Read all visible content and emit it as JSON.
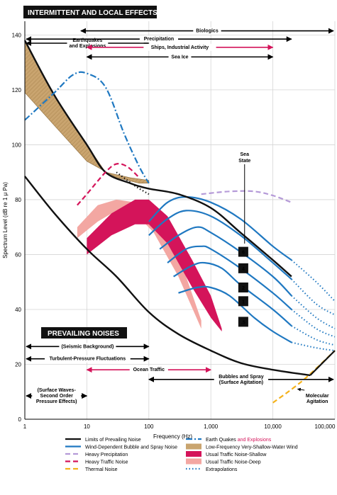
{
  "chart_data": {
    "type": "line",
    "header": "INTERMITTENT AND LOCAL EFFECTS",
    "prevailing_header": "PREVAILING NOISES",
    "xlabel": "Frequency (Hz)",
    "ylabel": "Spectrum Level (dB re 1 μ Pa)",
    "x_scale": "log",
    "xlim": [
      1,
      100000
    ],
    "ylim": [
      0,
      145
    ],
    "x_ticks": [
      {
        "value": 1,
        "label": "1"
      },
      {
        "value": 10,
        "label": "10"
      },
      {
        "value": 100,
        "label": "100"
      },
      {
        "value": 1000,
        "label": "1,000"
      },
      {
        "value": 10000,
        "label": "10,000"
      },
      {
        "value": 100000,
        "label": "100,000"
      }
    ],
    "y_ticks": [
      0,
      20,
      40,
      60,
      80,
      100,
      120,
      140
    ],
    "sea_state_title": [
      "Sea",
      "State"
    ],
    "sea_states": [
      {
        "label": "6",
        "anchor": [
          3000,
          61
        ]
      },
      {
        "label": "4",
        "anchor": [
          3000,
          55
        ]
      },
      {
        "label": "2",
        "anchor": [
          3000,
          48
        ]
      },
      {
        "label": "1",
        "anchor": [
          3000,
          43
        ]
      },
      {
        "label": ".5",
        "anchor": [
          3000,
          35.5
        ]
      }
    ],
    "arrows": [
      {
        "text": [
          "Earthquakes",
          "and Explosions"
        ],
        "accent": [
          false,
          true
        ],
        "x1": 1,
        "x2": 100,
        "y": 137,
        "color": "#000000"
      },
      {
        "text": [
          "Biologics"
        ],
        "accent": [
          false
        ],
        "x1": 8,
        "x2": 100000,
        "y": 141.5,
        "color": "#000000"
      },
      {
        "text": [
          "Precipitation"
        ],
        "accent": [
          false
        ],
        "x1": 1,
        "x2": 20000,
        "y": 138.5,
        "color": "#000000"
      },
      {
        "text": [
          "Ships, Industrial Activity"
        ],
        "accent": [
          true
        ],
        "x1": 10,
        "x2": 10000,
        "y": 135.5,
        "color": "#d4145a"
      },
      {
        "text": [
          "Sea Ice"
        ],
        "accent": [
          false
        ],
        "x1": 10,
        "x2": 10000,
        "y": 132,
        "color": "#000000"
      },
      {
        "text": [
          "(Seismic Background)"
        ],
        "accent": [
          false
        ],
        "x1": 1,
        "x2": 100,
        "y": 26.5,
        "color": "#000000"
      },
      {
        "text": [
          "Turbulent-Pressure Fluctuations"
        ],
        "accent": [
          false
        ],
        "x1": 1,
        "x2": 100,
        "y": 22,
        "color": "#000000"
      },
      {
        "text": [
          "Ocean Traffic"
        ],
        "accent": [
          true
        ],
        "x1": 10,
        "x2": 1000,
        "y": 18,
        "color": "#d4145a"
      },
      {
        "text": [
          "Bubbles and Spray",
          "(Surface Agitation)"
        ],
        "accent": [
          false,
          false
        ],
        "x1": 100,
        "x2": 100000,
        "y": 14.5,
        "color": "#000000"
      },
      {
        "text": [
          "(Surface Waves-",
          "Second Order",
          "Pressure Effects)"
        ],
        "accent": [
          false,
          false,
          false
        ],
        "x1": 1,
        "x2": 10,
        "y": 8.5,
        "color": "#000000"
      }
    ],
    "molecular_label": [
      "Molecular",
      "Agitation"
    ],
    "colors": {
      "black": "#111111",
      "blue": "#1f78c1",
      "magenta": "#d4145a",
      "lavender": "#b59ad8",
      "orange": "#f5b21a",
      "tan": "#c9a46f",
      "pink": "#f3a7a2",
      "crimson": "#d4145a"
    },
    "series": [
      {
        "name": "Limits of Prevailing Noise",
        "key": "limit_upper",
        "color": "#111111",
        "style": "solid",
        "points": [
          [
            1,
            138
          ],
          [
            3,
            118
          ],
          [
            10,
            100
          ],
          [
            20,
            90
          ],
          [
            50,
            86
          ],
          [
            100,
            84
          ],
          [
            300,
            82
          ],
          [
            1000,
            77
          ],
          [
            3000,
            68
          ],
          [
            10000,
            58
          ],
          [
            20000,
            52
          ]
        ]
      },
      {
        "name": "Limits of Prevailing Noise",
        "key": "limit_lower",
        "color": "#111111",
        "style": "solid",
        "points": [
          [
            1,
            88.5
          ],
          [
            3,
            75
          ],
          [
            10,
            62
          ],
          [
            30,
            52
          ],
          [
            100,
            39
          ],
          [
            300,
            31
          ],
          [
            1000,
            25
          ],
          [
            3000,
            20.5
          ],
          [
            10000,
            18
          ],
          [
            40000,
            16
          ]
        ]
      },
      {
        "name": "Extrapolations",
        "key": "extrap_upper",
        "color": "#111111",
        "style": "dotted",
        "points": [
          [
            30,
            90
          ],
          [
            60,
            85
          ],
          [
            100,
            82
          ]
        ]
      },
      {
        "name": "Earth Quakes and Explosions",
        "key": "earthquake",
        "color": "#1f78c1",
        "style": "dashdot",
        "points": [
          [
            1,
            109
          ],
          [
            3,
            119
          ],
          [
            6,
            125.5
          ],
          [
            10,
            126
          ],
          [
            20,
            121
          ],
          [
            40,
            104
          ],
          [
            70,
            92
          ],
          [
            100,
            86
          ]
        ]
      },
      {
        "name": "Heavy Traffic Noise",
        "key": "heavy_traffic",
        "color": "#d4145a",
        "style": "dashed",
        "points": [
          [
            7,
            78
          ],
          [
            10,
            82
          ],
          [
            20,
            90
          ],
          [
            30,
            93
          ],
          [
            45,
            92
          ],
          [
            70,
            88
          ]
        ]
      },
      {
        "name": "Heavy Precipitation",
        "key": "heavy_precip",
        "color": "#b59ad8",
        "style": "dashed",
        "points": [
          [
            700,
            82
          ],
          [
            2000,
            83
          ],
          [
            5000,
            83
          ],
          [
            10000,
            81.5
          ],
          [
            20000,
            79
          ]
        ]
      },
      {
        "name": "Thermal Noise",
        "key": "thermal",
        "color": "#f5b21a",
        "style": "dashed",
        "points": [
          [
            10000,
            6
          ],
          [
            30000,
            14
          ],
          [
            100000,
            25
          ]
        ]
      },
      {
        "name": "Molecular Agitation",
        "key": "thermal_solid",
        "color": "#111111",
        "style": "solid",
        "points": [
          [
            40000,
            16
          ],
          [
            100000,
            25
          ]
        ]
      }
    ],
    "bands": [
      {
        "name": "Low-Frequency Very-Shallow-Water Wind",
        "key": "lf_wind",
        "color": "#c9a46f",
        "upper": [
          [
            1,
            138
          ],
          [
            3,
            118
          ],
          [
            10,
            100
          ],
          [
            20,
            90
          ],
          [
            50,
            88
          ],
          [
            100,
            87
          ]
        ],
        "lower": [
          [
            1,
            119
          ],
          [
            3,
            107
          ],
          [
            10,
            94
          ],
          [
            30,
            88
          ],
          [
            70,
            86
          ],
          [
            100,
            86
          ]
        ]
      },
      {
        "name": "Usual Traffic Noise-Deep",
        "key": "traffic_deep",
        "color": "#f3a7a2",
        "upper": [
          [
            7,
            70
          ],
          [
            15,
            78
          ],
          [
            30,
            80
          ],
          [
            60,
            79
          ],
          [
            120,
            74
          ],
          [
            300,
            60
          ],
          [
            700,
            36
          ]
        ],
        "lower": [
          [
            7,
            66
          ],
          [
            15,
            72
          ],
          [
            30,
            76
          ],
          [
            60,
            75
          ],
          [
            120,
            68
          ],
          [
            300,
            52
          ],
          [
            700,
            33
          ]
        ]
      },
      {
        "name": "Usual Traffic Noise-Shallow",
        "key": "traffic_shallow",
        "color": "#d4145a",
        "upper": [
          [
            10,
            66
          ],
          [
            25,
            75
          ],
          [
            60,
            80
          ],
          [
            100,
            80
          ],
          [
            200,
            74
          ],
          [
            500,
            58
          ],
          [
            1000,
            45
          ],
          [
            1500,
            33
          ]
        ],
        "lower": [
          [
            10,
            60
          ],
          [
            25,
            67
          ],
          [
            60,
            71
          ],
          [
            100,
            71
          ],
          [
            200,
            64
          ],
          [
            500,
            48
          ],
          [
            1000,
            37
          ],
          [
            1500,
            32
          ]
        ]
      }
    ],
    "wind_curves": [
      {
        "name": "Wind-Dependent Bubble and Spray Noise",
        "label": "6",
        "solid": [
          [
            100,
            72
          ],
          [
            200,
            79
          ],
          [
            400,
            81
          ],
          [
            1000,
            79
          ],
          [
            3000,
            73
          ],
          [
            10000,
            63
          ],
          [
            20000,
            58
          ]
        ],
        "dotted": [
          [
            20000,
            58
          ],
          [
            50000,
            50
          ],
          [
            100000,
            43
          ]
        ]
      },
      {
        "name": "Wind-Dependent Bubble and Spray Noise",
        "label": "5",
        "solid": [
          [
            100,
            67
          ],
          [
            200,
            73
          ],
          [
            400,
            76
          ],
          [
            1000,
            74
          ],
          [
            3000,
            67
          ],
          [
            10000,
            57
          ],
          [
            20000,
            51
          ]
        ],
        "dotted": [
          [
            20000,
            51
          ],
          [
            50000,
            42
          ],
          [
            100000,
            38
          ]
        ]
      },
      {
        "name": "Wind-Dependent Bubble and Spray Noise",
        "label": "4",
        "solid": [
          [
            150,
            62
          ],
          [
            300,
            67
          ],
          [
            600,
            70
          ],
          [
            1000,
            68
          ],
          [
            3000,
            61
          ],
          [
            10000,
            52
          ],
          [
            20000,
            45
          ]
        ],
        "dotted": [
          [
            20000,
            45
          ],
          [
            50000,
            37
          ],
          [
            100000,
            33
          ]
        ]
      },
      {
        "name": "Wind-Dependent Bubble and Spray Noise",
        "label": "3",
        "solid": [
          [
            200,
            57
          ],
          [
            400,
            62
          ],
          [
            700,
            63
          ],
          [
            1000,
            62
          ],
          [
            3000,
            55
          ],
          [
            10000,
            46
          ],
          [
            20000,
            40
          ]
        ],
        "dotted": [
          [
            20000,
            40
          ],
          [
            50000,
            33
          ],
          [
            100000,
            30
          ]
        ]
      },
      {
        "name": "Wind-Dependent Bubble and Spray Noise",
        "label": "2",
        "solid": [
          [
            250,
            52
          ],
          [
            500,
            56
          ],
          [
            800,
            57
          ],
          [
            1500,
            55
          ],
          [
            3000,
            49
          ],
          [
            10000,
            40
          ],
          [
            20000,
            34
          ]
        ],
        "dotted": [
          [
            20000,
            34
          ],
          [
            50000,
            29
          ],
          [
            100000,
            27
          ]
        ]
      },
      {
        "name": "Wind-Dependent Bubble and Spray Noise",
        "label": "1",
        "solid": [
          [
            300,
            46
          ],
          [
            600,
            48
          ],
          [
            1000,
            48
          ],
          [
            2000,
            45
          ],
          [
            5000,
            37
          ],
          [
            10000,
            32
          ],
          [
            20000,
            28
          ]
        ],
        "dotted": [
          [
            20000,
            28
          ],
          [
            50000,
            26
          ],
          [
            100000,
            25
          ]
        ]
      }
    ],
    "legend": {
      "placement": "bottom",
      "items": [
        {
          "label": "Limits of Prevailing Noise",
          "swatch": "line",
          "color": "#111111",
          "style": "solid",
          "accent": false
        },
        {
          "label": "Earth Quakes",
          "label2": "and Explosions",
          "swatch": "line",
          "color": "#1f78c1",
          "style": "dashdot",
          "accent": false
        },
        {
          "label": "Wind-Dependent Bubble and Spray Noise",
          "swatch": "line",
          "color": "#1f78c1",
          "style": "solid",
          "accent": false
        },
        {
          "label": "Low-Frequency Very-Shallow-Water Wind",
          "swatch": "box",
          "color": "#c9a46f",
          "style": "solid",
          "accent": false
        },
        {
          "label": "Heavy Precipitation",
          "swatch": "line",
          "color": "#b59ad8",
          "style": "dashed",
          "accent": false
        },
        {
          "label": "Usual Traffic Noise-Shallow",
          "swatch": "box",
          "color": "#d4145a",
          "style": "solid",
          "accent": false
        },
        {
          "label": "Heavy Traffic Noise",
          "swatch": "line",
          "color": "#d4145a",
          "style": "dashed",
          "accent": true
        },
        {
          "label": "Usual Traffic Noise-Deep",
          "swatch": "box",
          "color": "#f3a7a2",
          "style": "solid",
          "accent": false
        },
        {
          "label": "Thermal Noise",
          "swatch": "line",
          "color": "#f5b21a",
          "style": "dashed",
          "accent": false
        },
        {
          "label": "Extrapolations",
          "swatch": "line",
          "color": "#1f78c1",
          "style": "dotted",
          "accent": false
        }
      ]
    },
    "grid": true
  }
}
